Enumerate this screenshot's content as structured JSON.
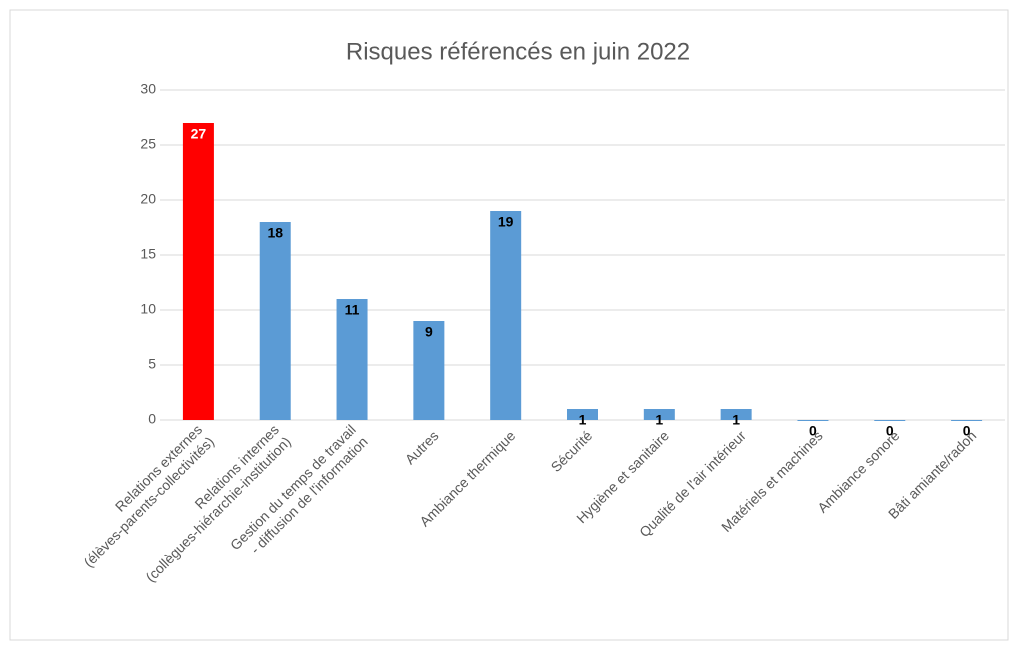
{
  "chart_data": {
    "type": "bar",
    "title": "Risques référencés en juin 2022",
    "categories": [
      [
        "Relations externes",
        "(élèves-parents-collectivités)"
      ],
      [
        "Relations internes",
        "(collègues-hiérarchie-institution)"
      ],
      [
        "Gestion du temps de travail",
        "- diffusion de l'information"
      ],
      [
        "Autres"
      ],
      [
        "Ambiance thermique"
      ],
      [
        "Sécurité"
      ],
      [
        "Hygiène et sanitaire"
      ],
      [
        "Qualité de l'air intérieur"
      ],
      [
        "Matériels et machines"
      ],
      [
        "Ambiance sonore"
      ],
      [
        "Bâti amiante/radon"
      ]
    ],
    "values": [
      27,
      18,
      11,
      9,
      19,
      1,
      1,
      1,
      0,
      0,
      0
    ],
    "colors": [
      "#ff0000",
      "#5b9bd5",
      "#5b9bd5",
      "#5b9bd5",
      "#5b9bd5",
      "#5b9bd5",
      "#5b9bd5",
      "#5b9bd5",
      "#5b9bd5",
      "#5b9bd5",
      "#5b9bd5"
    ],
    "ylim": [
      0,
      30
    ],
    "yticks": [
      0,
      5,
      10,
      15,
      20,
      25,
      30
    ],
    "grid": true
  }
}
